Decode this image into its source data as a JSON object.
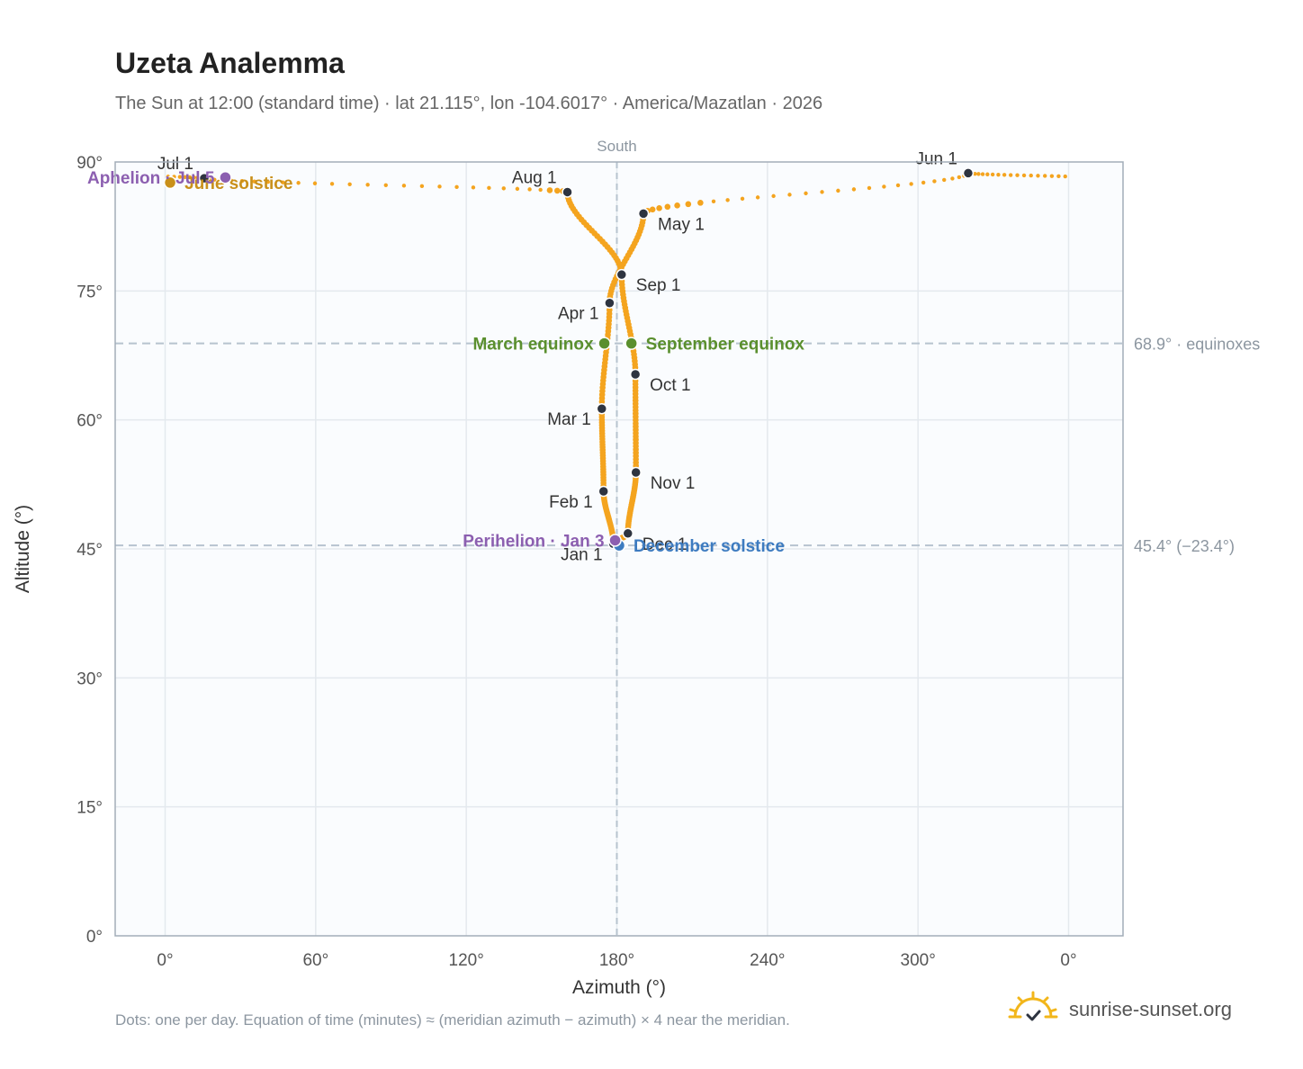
{
  "title": "Uzeta Analemma",
  "subtitle": "The Sun at 12:00 (standard time) · lat 21.115°, lon -104.6017° · America/Mazatlan · 2026",
  "footnote": "Dots: one per day. Equation of time (minutes) ≈ (meridian azimuth − azimuth) × 4 near the meridian.",
  "brand": "sunrise-sunset.org",
  "colors": {
    "curve": "#f4a41f",
    "month_dot": "#2e3440",
    "equinox": "#5a8f2e",
    "december_solstice": "#3d7bc0",
    "june_solstice": "#c9901a",
    "apsis": "#8c5fb0",
    "reference_line": "#b7c3cf",
    "plot_bg": "#fafcfe",
    "grid": "#e4e9ee"
  },
  "chart_data": {
    "type": "scatter",
    "x_axis": {
      "label": "Azimuth (°)",
      "ticks": [
        "0°",
        "60°",
        "120°",
        "180°",
        "240°",
        "300°",
        "0°"
      ]
    },
    "y_axis": {
      "label": "Altitude (°)",
      "ylim": [
        0,
        90
      ],
      "ticks": [
        "0°",
        "15°",
        "30°",
        "45°",
        "60°",
        "75°",
        "90°"
      ]
    },
    "grid": true,
    "meridian": {
      "label": "South",
      "azimuth": 180
    },
    "reference_lines": [
      {
        "altitude": 68.9,
        "label": "68.9° · equinoxes"
      },
      {
        "altitude": 45.4,
        "label": "45.4° (−23.4°)"
      }
    ],
    "month_markers": [
      {
        "label": "Jan 1",
        "azimuth": 178.6,
        "altitude": 45.6
      },
      {
        "label": "Feb 1",
        "azimuth": 174.7,
        "altitude": 51.7
      },
      {
        "label": "Mar 1",
        "azimuth": 174.0,
        "altitude": 61.3
      },
      {
        "label": "Apr 1",
        "azimuth": 177.1,
        "altitude": 73.6
      },
      {
        "label": "May 1",
        "azimuth": 190.6,
        "altitude": 84.0
      },
      {
        "label": "Jun 1",
        "azimuth": 320.0,
        "altitude": 88.7
      },
      {
        "label": "Jul 1",
        "azimuth": 15.6,
        "altitude": 88.1
      },
      {
        "label": "Aug 1",
        "azimuth": 160.3,
        "altitude": 86.5
      },
      {
        "label": "Sep 1",
        "azimuth": 181.9,
        "altitude": 76.9
      },
      {
        "label": "Oct 1",
        "azimuth": 187.4,
        "altitude": 65.3
      },
      {
        "label": "Nov 1",
        "azimuth": 187.6,
        "altitude": 53.9
      },
      {
        "label": "Dec 1",
        "azimuth": 184.4,
        "altitude": 46.8
      }
    ],
    "events": [
      {
        "label": "March equinox",
        "azimuth": 175.0,
        "altitude": 68.9,
        "color_key": "equinox",
        "label_side": "left"
      },
      {
        "label": "September equinox",
        "azimuth": 185.8,
        "altitude": 68.9,
        "color_key": "equinox",
        "label_side": "right"
      },
      {
        "label": "December solstice",
        "azimuth": 180.9,
        "altitude": 45.4,
        "color_key": "december_solstice",
        "label_side": "right"
      },
      {
        "label": "June solstice",
        "azimuth": 2.0,
        "altitude": 87.6,
        "color_key": "june_solstice",
        "label_side": "right"
      },
      {
        "label": "Perihelion · Jan 3",
        "azimuth": 179.3,
        "altitude": 46.0,
        "color_key": "apsis",
        "label_side": "left"
      },
      {
        "label": "Aphelion · Jul 5",
        "azimuth": 24.0,
        "altitude": 88.2,
        "color_key": "apsis",
        "label_side": "left"
      }
    ]
  }
}
